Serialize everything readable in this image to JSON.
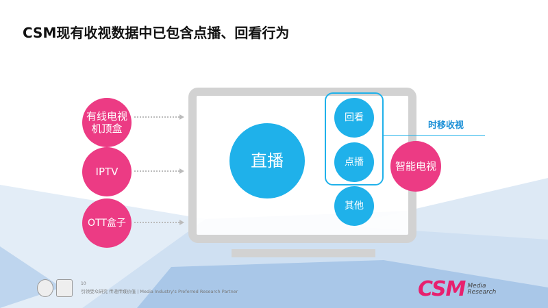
{
  "title": "CSM现有收视数据中已包含点播、回看行为",
  "sources": [
    "有线电视机顶盒",
    "IPTV",
    "OTT盒子"
  ],
  "center": "直播",
  "right_circles": [
    "回看",
    "点播",
    "其他"
  ],
  "smart_tv": "智能电视",
  "time_shift_label": "时移收视",
  "footer": {
    "page_number": "10",
    "slogan": "引领受众研究 传递传媒价值 | Media Industry's Preferred Research Partner"
  },
  "logo": {
    "main": "CSM",
    "sub1": "Media",
    "sub2": "Research"
  },
  "colors": {
    "pink": "#ec3b84",
    "blue": "#1fb1ea"
  }
}
